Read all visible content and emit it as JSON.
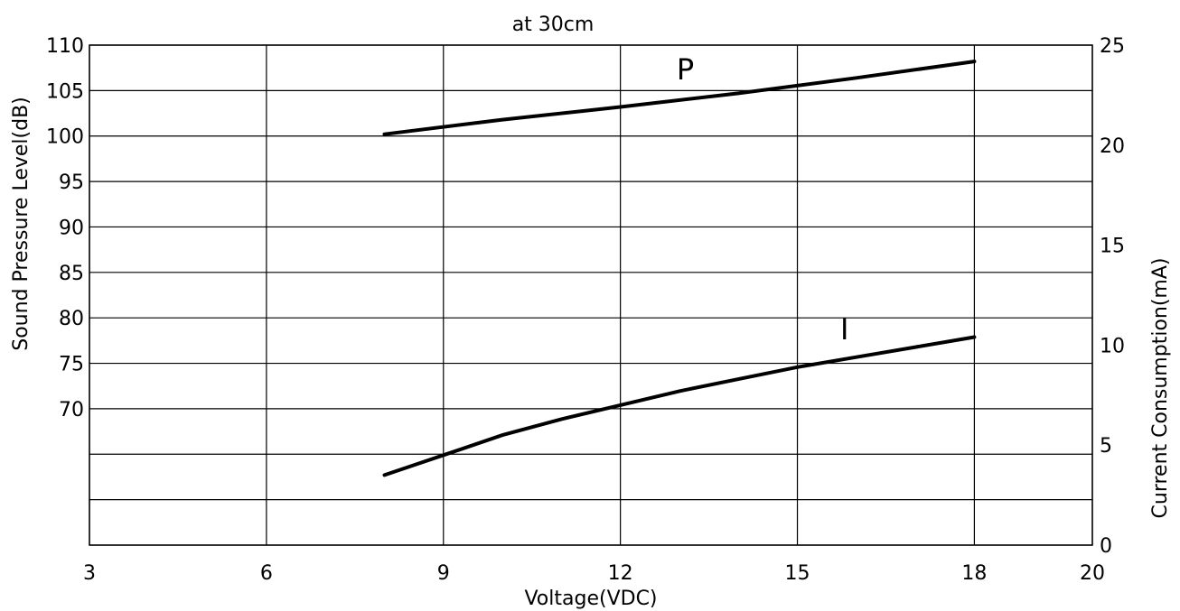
{
  "chart_data": {
    "type": "line",
    "title": "at 30cm",
    "xlabel": "Voltage(VDC)",
    "ylabel_left": "Sound Pressure Level(dB)",
    "ylabel_right": "Current Consumption(mA)",
    "xlim": [
      3,
      20
    ],
    "x_ticks": [
      3,
      6,
      9,
      12,
      15,
      18,
      20
    ],
    "ylim_left": [
      55,
      110
    ],
    "y_ticks_left": [
      110,
      105,
      100,
      95,
      90,
      85,
      80,
      75,
      70
    ],
    "ylim_right": [
      0,
      25
    ],
    "y_ticks_right": [
      25,
      20,
      15,
      10,
      5,
      0
    ],
    "grid": true,
    "series": [
      {
        "name": "P",
        "axis": "left",
        "x": [
          8,
          10,
          12,
          14,
          16,
          18
        ],
        "y": [
          100.2,
          101.8,
          103.2,
          104.7,
          106.4,
          108.2
        ]
      },
      {
        "name": "I",
        "axis": "right",
        "x": [
          8,
          9,
          10,
          11,
          12,
          13,
          14,
          15,
          16,
          17,
          18
        ],
        "y": [
          3.5,
          4.5,
          5.5,
          6.3,
          7.0,
          7.7,
          8.3,
          8.9,
          9.4,
          9.9,
          10.4
        ]
      }
    ]
  }
}
